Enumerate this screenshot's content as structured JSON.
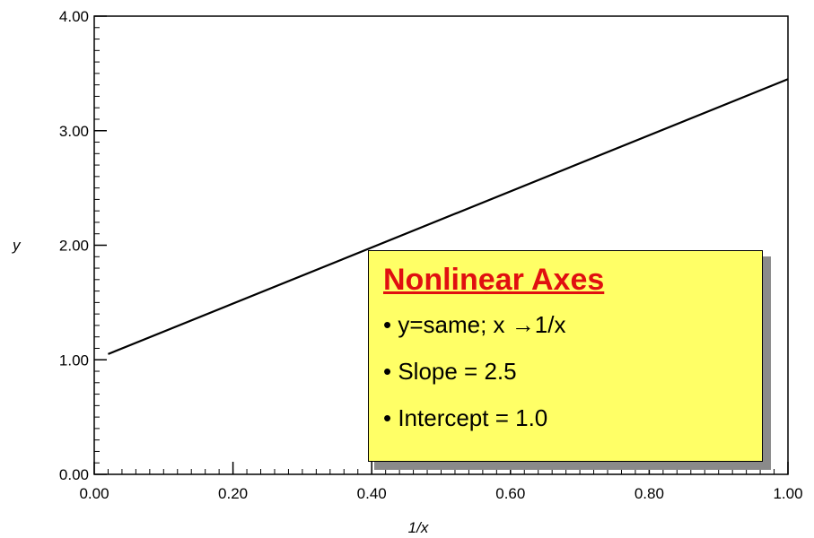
{
  "chart_data": {
    "type": "line",
    "xlabel": "1/x",
    "ylabel": "y",
    "xlim": [
      0,
      1
    ],
    "ylim": [
      0,
      4
    ],
    "x_ticks": [
      "0.00",
      "0.20",
      "0.40",
      "0.60",
      "0.80",
      "1.00"
    ],
    "y_ticks": [
      "0.00",
      "1.00",
      "2.00",
      "3.00",
      "4.00"
    ],
    "grid": false,
    "series": [
      {
        "x": [
          0.02,
          1.0
        ],
        "y": [
          1.05,
          3.45
        ]
      }
    ]
  },
  "callout": {
    "title": "Nonlinear Axes",
    "items": [
      "• y=same; x →1/x",
      "• Slope = 2.5",
      "• Intercept = 1.0"
    ],
    "title_color": "#e01010",
    "background": "#ffff66"
  }
}
